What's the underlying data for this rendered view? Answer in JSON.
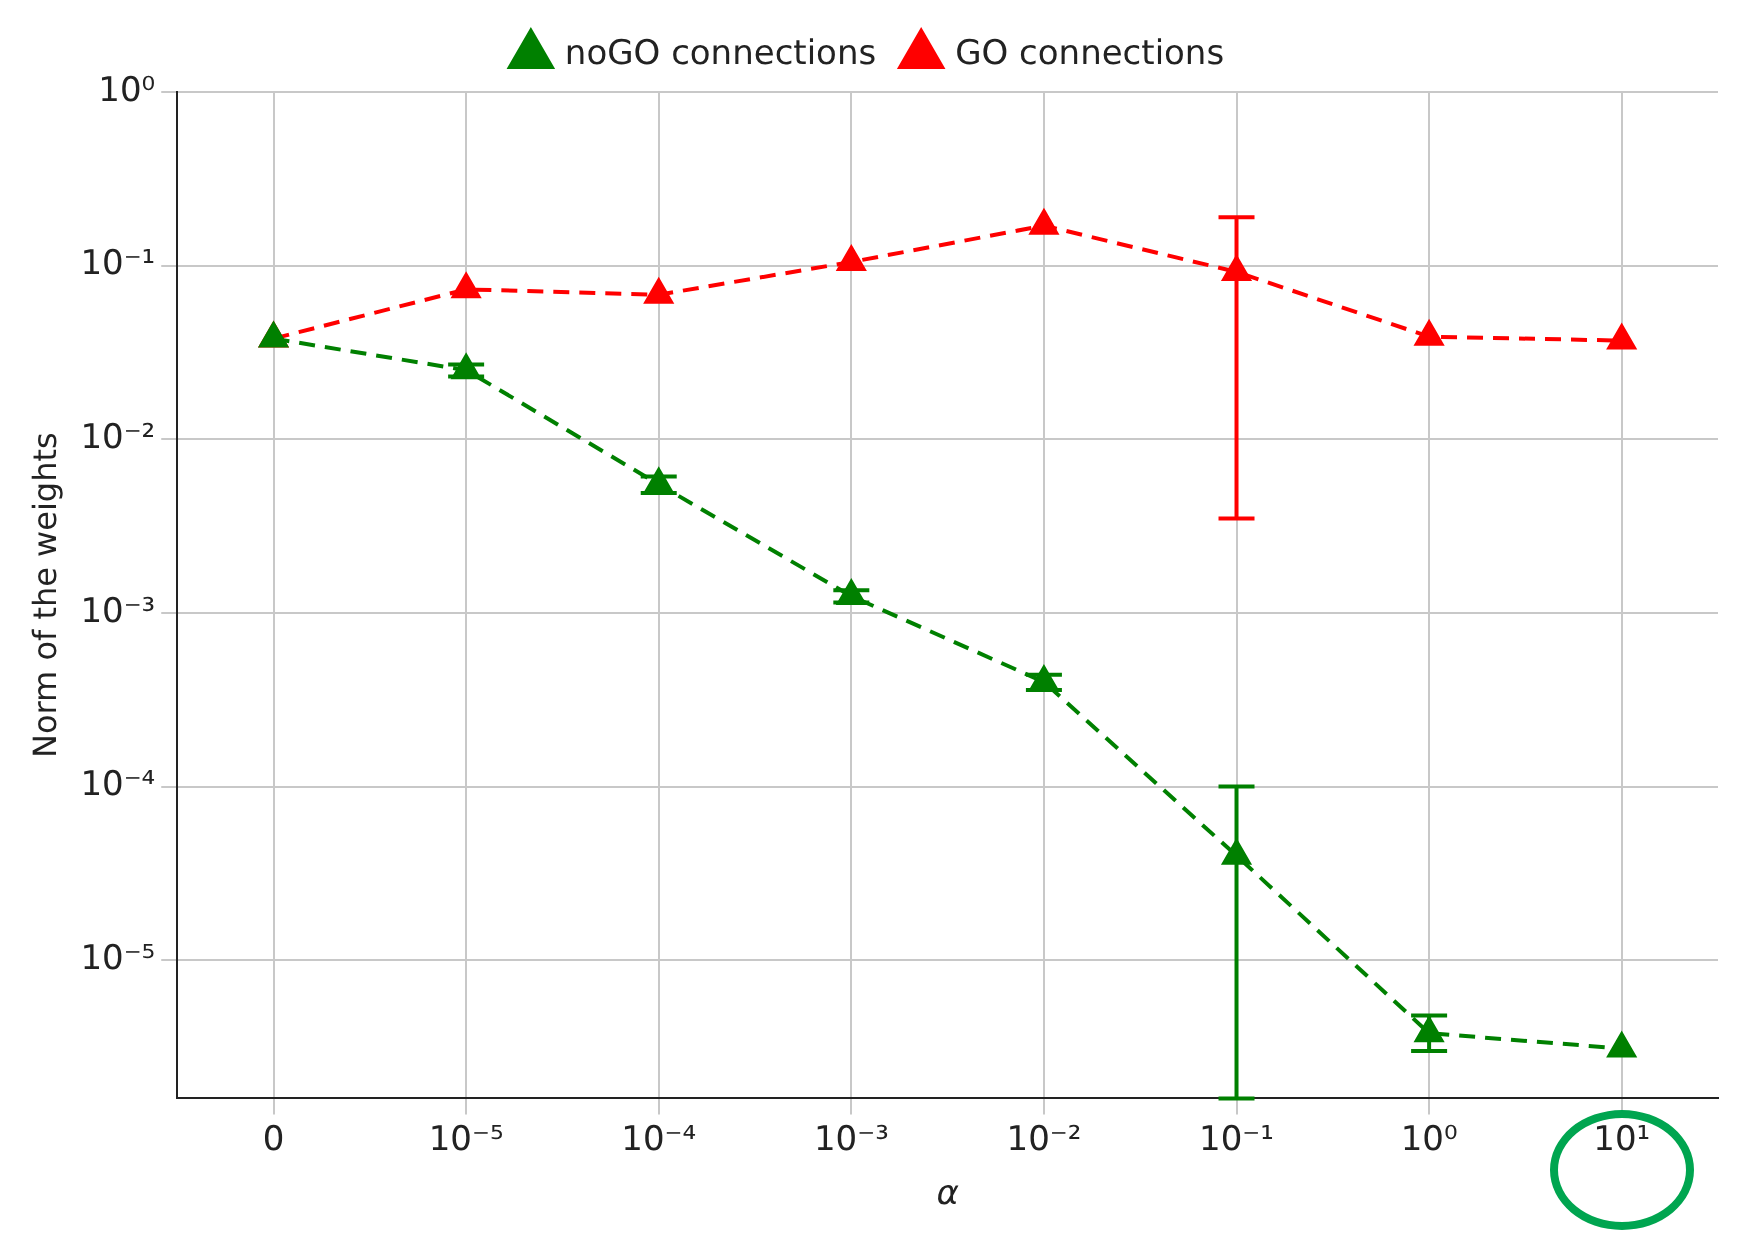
{
  "chart_data": {
    "type": "line",
    "xlabel": "α",
    "ylabel": "Norm of the weights",
    "categories": [
      "0",
      "10⁻⁵",
      "10⁻⁴",
      "10⁻³",
      "10⁻²",
      "10⁻¹",
      "10⁰",
      "10¹"
    ],
    "series": [
      {
        "name": "GO connections",
        "color": "#ff0000",
        "values": [
          0.038,
          0.073,
          0.068,
          0.105,
          0.17,
          0.092,
          0.039,
          0.037
        ],
        "errors": [
          null,
          null,
          null,
          null,
          null,
          [
            0.0035,
            0.19
          ],
          null,
          null
        ]
      },
      {
        "name": "noGO connections",
        "color": "#008000",
        "values": [
          0.038,
          0.025,
          0.0055,
          0.00125,
          0.0004,
          4e-05,
          3.8e-06,
          3.1e-06
        ],
        "errors": [
          null,
          0.002,
          0.0006,
          0.0001,
          4e-05,
          [
            1.6e-06,
            0.0001
          ],
          [
            3e-06,
            4.8e-06
          ],
          null
        ]
      }
    ],
    "log": "y",
    "ylim": [
      1.6e-06,
      1
    ],
    "yticks": [
      {
        "value": 1,
        "label": "10⁰"
      },
      {
        "value": 0.1,
        "label": "10⁻¹"
      },
      {
        "value": 0.01,
        "label": "10⁻²"
      },
      {
        "value": 0.001,
        "label": "10⁻³"
      },
      {
        "value": 0.0001,
        "label": "10⁻⁴"
      },
      {
        "value": 1e-05,
        "label": "10⁻⁵"
      }
    ],
    "grid": true,
    "legend": "top",
    "marker": "triangle",
    "line_style": "dashed"
  }
}
